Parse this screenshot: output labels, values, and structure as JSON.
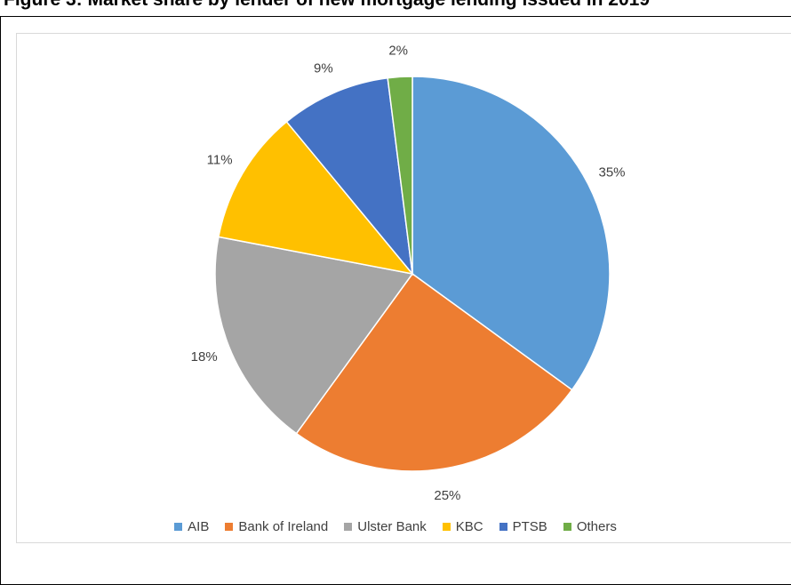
{
  "page_title": "Figure 3: Market share by lender of new mortgage lending issued in 2019",
  "chart_data": {
    "type": "pie",
    "title": "",
    "categories": [
      "AIB",
      "Bank of Ireland",
      "Ulster Bank",
      "KBC",
      "PTSB",
      "Others"
    ],
    "values": [
      35,
      25,
      18,
      11,
      9,
      2
    ],
    "labels": [
      "35%",
      "25%",
      "18%",
      "11%",
      "9%",
      "2%"
    ],
    "colors": [
      "#5b9bd5",
      "#ed7d31",
      "#a5a5a5",
      "#ffc000",
      "#4472c4",
      "#70ad47"
    ],
    "start_angle": "12 o'clock",
    "direction": "clockwise",
    "legend_position": "bottom"
  }
}
